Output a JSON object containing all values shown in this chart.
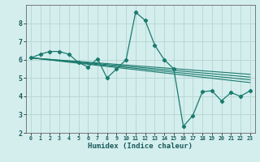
{
  "xlabel": "Humidex (Indice chaleur)",
  "bg_color": "#d4eeee",
  "grid_color": "#b8d8d4",
  "line_color": "#1a7a6e",
  "xlim": [
    -0.5,
    23.5
  ],
  "ylim": [
    2,
    9
  ],
  "xticks": [
    0,
    1,
    2,
    3,
    4,
    5,
    6,
    7,
    8,
    9,
    10,
    11,
    12,
    13,
    14,
    15,
    16,
    17,
    18,
    19,
    20,
    21,
    22,
    23
  ],
  "yticks": [
    2,
    3,
    4,
    5,
    6,
    7,
    8
  ],
  "main_line": {
    "x": [
      0,
      1,
      2,
      3,
      4,
      5,
      6,
      7,
      8,
      9,
      10,
      11,
      12,
      13,
      14,
      15,
      16,
      17,
      18,
      19,
      20,
      21,
      22,
      23
    ],
    "y": [
      6.1,
      6.3,
      6.45,
      6.45,
      6.3,
      5.85,
      5.6,
      6.05,
      5.0,
      5.5,
      6.0,
      8.6,
      8.15,
      6.8,
      6.0,
      5.5,
      2.35,
      2.95,
      4.25,
      4.3,
      3.75,
      4.2,
      4.0,
      4.3
    ]
  },
  "trend_lines": [
    {
      "x0": 0,
      "y0": 6.1,
      "x1": 23,
      "y1": 5.2
    },
    {
      "x0": 0,
      "y0": 6.1,
      "x1": 23,
      "y1": 5.05
    },
    {
      "x0": 0,
      "y0": 6.1,
      "x1": 23,
      "y1": 4.9
    },
    {
      "x0": 0,
      "y0": 6.1,
      "x1": 23,
      "y1": 4.75
    }
  ]
}
